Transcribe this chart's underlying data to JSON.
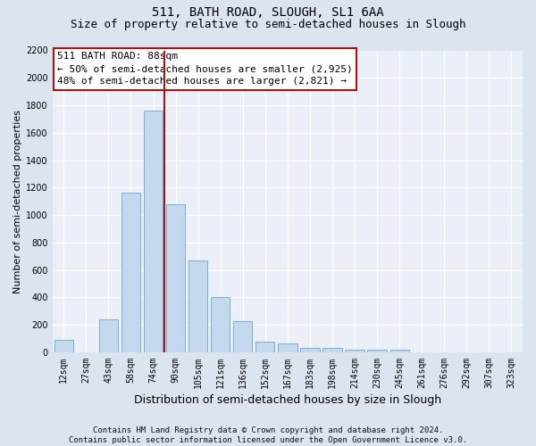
{
  "title": "511, BATH ROAD, SLOUGH, SL1 6AA",
  "subtitle": "Size of property relative to semi-detached houses in Slough",
  "xlabel": "Distribution of semi-detached houses by size in Slough",
  "ylabel": "Number of semi-detached properties",
  "categories": [
    "12sqm",
    "27sqm",
    "43sqm",
    "58sqm",
    "74sqm",
    "90sqm",
    "105sqm",
    "121sqm",
    "136sqm",
    "152sqm",
    "167sqm",
    "183sqm",
    "198sqm",
    "214sqm",
    "230sqm",
    "245sqm",
    "261sqm",
    "276sqm",
    "292sqm",
    "307sqm",
    "323sqm"
  ],
  "values": [
    90,
    0,
    240,
    1160,
    1760,
    1080,
    670,
    400,
    230,
    80,
    65,
    35,
    30,
    20,
    20,
    20,
    0,
    0,
    0,
    0,
    0
  ],
  "bar_color": "#c5d9ee",
  "bar_edge_color": "#7aafd4",
  "vline_x": 4.5,
  "vline_color": "#aa1111",
  "annotation_text": "511 BATH ROAD: 88sqm\n← 50% of semi-detached houses are smaller (2,925)\n48% of semi-detached houses are larger (2,821) →",
  "ylim_max": 2200,
  "yticks": [
    0,
    200,
    400,
    600,
    800,
    1000,
    1200,
    1400,
    1600,
    1800,
    2000,
    2200
  ],
  "bg_color": "#dce4f0",
  "plot_bg_color": "#eaeff8",
  "title_fontsize": 10,
  "subtitle_fontsize": 9,
  "tick_fontsize": 7,
  "ylabel_fontsize": 8,
  "xlabel_fontsize": 9,
  "footer_fontsize": 6.5,
  "footer_line1": "Contains HM Land Registry data © Crown copyright and database right 2024.",
  "footer_line2": "Contains public sector information licensed under the Open Government Licence v3.0."
}
